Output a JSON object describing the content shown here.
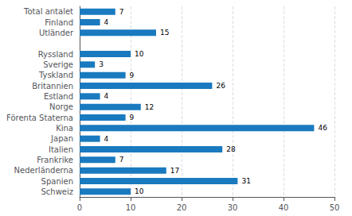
{
  "chart_data": {
    "type": "bar",
    "orientation": "horizontal",
    "categories": [
      "Schweiz",
      "Spanien",
      "Nederländerna",
      "Frankrike",
      "Italien",
      "Japan",
      "Kina",
      "Förenta Staterna",
      "Norge",
      "Estland",
      "Britannien",
      "Tyskland",
      "Sverige",
      "Ryssland",
      null,
      "Utländer",
      "Finland",
      "Total antalet"
    ],
    "values": [
      10,
      31,
      17,
      7,
      28,
      4,
      46,
      9,
      12,
      4,
      26,
      9,
      3,
      10,
      0,
      15,
      4,
      7
    ],
    "value_labels": [
      "10",
      "31",
      "17",
      "7",
      "28",
      "4",
      "46",
      "9",
      "12",
      "4",
      "26",
      "9",
      "3",
      "10",
      null,
      "15",
      "4",
      "7"
    ],
    "data_labels": true,
    "color": "#1a7abf",
    "xlim": [
      0,
      50
    ],
    "xticks": [
      0,
      10,
      20,
      30,
      40,
      50
    ],
    "grid": true
  }
}
